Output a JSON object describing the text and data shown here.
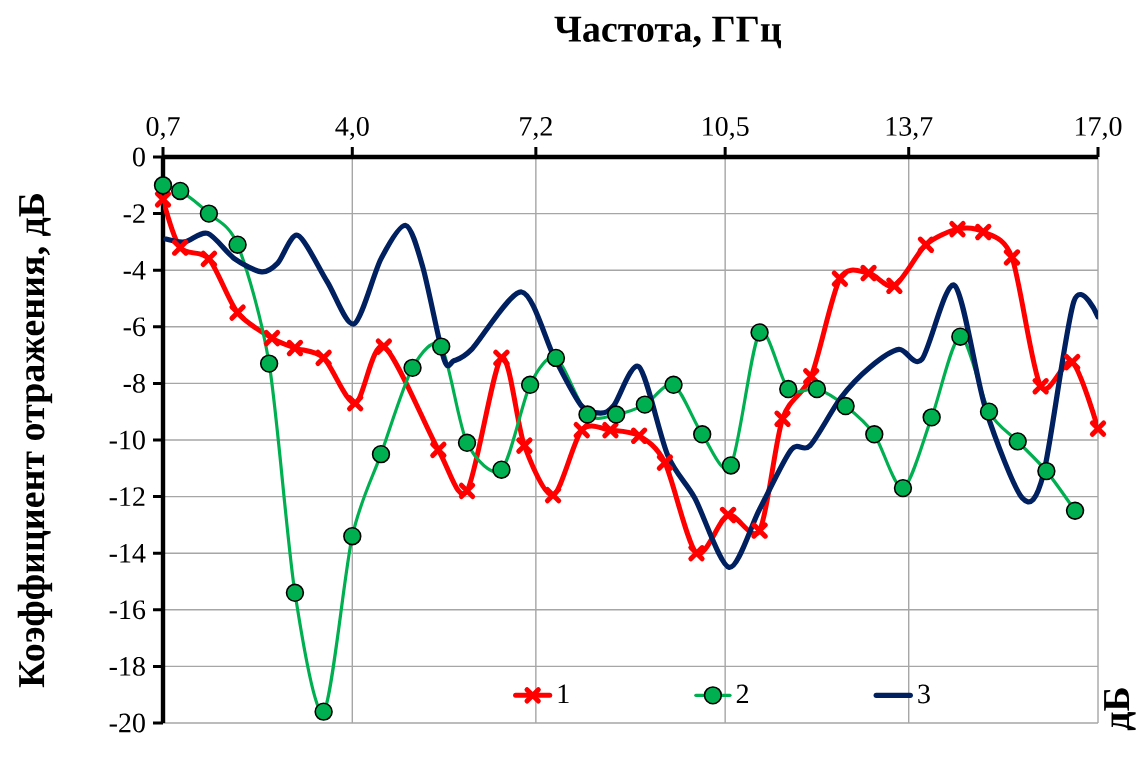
{
  "chart_data": {
    "type": "line",
    "xlabel": "Частота, ГГц",
    "ylabel": "Коэффициент отражения, дБ",
    "annotations": [
      "дБ"
    ],
    "xlim": [
      0.7,
      17.0
    ],
    "ylim": [
      -20,
      0
    ],
    "xticks": [
      {
        "value": 0.7,
        "label": "0,7"
      },
      {
        "value": 4.0,
        "label": "4,0"
      },
      {
        "value": 7.2,
        "label": "7,2"
      },
      {
        "value": 10.5,
        "label": "10,5"
      },
      {
        "value": 13.7,
        "label": "13,7"
      },
      {
        "value": 17.0,
        "label": "17,0"
      }
    ],
    "yticks": [
      0,
      -2,
      -4,
      -6,
      -8,
      -10,
      -12,
      -14,
      -16,
      -18,
      -20
    ],
    "grid": true,
    "legend": "bottom",
    "series": [
      {
        "name": "1",
        "color": "#ff0000",
        "marker": "cross",
        "x": [
          0.7,
          1.0,
          1.5,
          2.0,
          2.6,
          3.0,
          3.5,
          4.05,
          4.55,
          5.5,
          6.0,
          6.6,
          7.0,
          7.5,
          8.0,
          8.5,
          9.0,
          9.45,
          10.0,
          10.55,
          11.1,
          11.5,
          12.0,
          12.5,
          13.0,
          13.45,
          14.0,
          14.55,
          15.0,
          15.5,
          16.0,
          16.55,
          17.0
        ],
        "values": [
          -1.5,
          -3.2,
          -3.6,
          -5.5,
          -6.4,
          -6.75,
          -7.1,
          -8.7,
          -6.7,
          -10.35,
          -11.8,
          -7.1,
          -10.2,
          -11.95,
          -9.65,
          -9.65,
          -9.85,
          -10.8,
          -14.0,
          -12.65,
          -13.2,
          -9.25,
          -7.75,
          -4.3,
          -4.1,
          -4.55,
          -3.1,
          -2.55,
          -2.65,
          -3.55,
          -8.1,
          -7.25,
          -9.6
        ]
      },
      {
        "name": "2",
        "color": "#00b050",
        "marker": "circle",
        "x": [
          0.7,
          1.0,
          1.5,
          2.0,
          2.55,
          3.0,
          3.5,
          4.0,
          4.5,
          5.05,
          5.55,
          6.0,
          6.6,
          7.1,
          7.55,
          8.1,
          8.6,
          9.1,
          9.6,
          10.1,
          10.6,
          11.1,
          11.6,
          12.1,
          12.6,
          13.1,
          13.6,
          14.1,
          14.6,
          15.1,
          15.6,
          16.1,
          16.6
        ],
        "values": [
          -1.0,
          -1.2,
          -2.0,
          -3.1,
          -7.3,
          -15.4,
          -19.6,
          -13.4,
          -10.5,
          -7.45,
          -6.7,
          -10.1,
          -11.05,
          -8.05,
          -7.1,
          -9.1,
          -9.1,
          -8.75,
          -8.05,
          -9.8,
          -10.9,
          -6.2,
          -8.2,
          -8.2,
          -8.8,
          -9.8,
          -11.7,
          -9.2,
          -6.35,
          -9.0,
          -10.05,
          -11.1,
          -12.5
        ]
      },
      {
        "name": "3",
        "color": "#002060",
        "marker": "none",
        "x": [
          0.75,
          1.08,
          1.48,
          1.95,
          2.42,
          2.7,
          3.05,
          3.56,
          4.03,
          4.5,
          4.93,
          5.23,
          5.6,
          5.77,
          6.08,
          6.95,
          7.52,
          7.99,
          8.33,
          8.56,
          9.0,
          9.5,
          9.97,
          10.57,
          11.1,
          11.65,
          11.98,
          12.52,
          13.03,
          13.53,
          13.93,
          14.5,
          15.04,
          15.68,
          16.05,
          16.58,
          17.0
        ],
        "values": [
          -2.9,
          -3.0,
          -2.7,
          -3.6,
          -4.06,
          -3.75,
          -2.77,
          -4.4,
          -5.9,
          -3.6,
          -2.42,
          -3.9,
          -7.15,
          -7.2,
          -6.8,
          -4.77,
          -7.08,
          -8.78,
          -9.05,
          -8.78,
          -7.42,
          -10.55,
          -12.05,
          -14.5,
          -12.45,
          -10.35,
          -10.2,
          -8.5,
          -7.42,
          -6.8,
          -7.15,
          -4.54,
          -8.9,
          -12.05,
          -11.2,
          -5.1,
          -5.65
        ]
      }
    ]
  }
}
